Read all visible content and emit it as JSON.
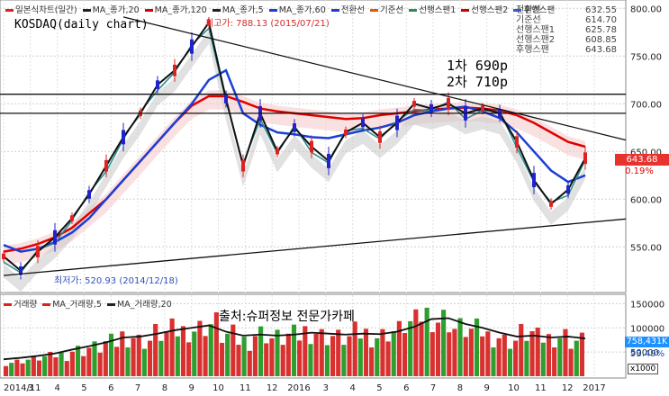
{
  "legend": {
    "items": [
      {
        "label": "일본식차트(일간)",
        "color": "#d22"
      },
      {
        "label": "MA_종가,20",
        "color": "#222"
      },
      {
        "label": "MA_종가,120",
        "color": "#e00000"
      },
      {
        "label": "MA_종가,5",
        "color": "#222"
      },
      {
        "label": "MA_종가,60",
        "color": "#1b3fd6"
      },
      {
        "label": "전환선",
        "color": "#1b3fd6"
      },
      {
        "label": "기준선",
        "color": "#e05a00"
      },
      {
        "label": "선행스팬1",
        "color": "#2e8b57"
      },
      {
        "label": "선행스팬2",
        "color": "#cc0000"
      },
      {
        "label": "후행스팬",
        "color": "#3a5ad0"
      }
    ]
  },
  "info_box": {
    "rows": [
      {
        "label": "전환선",
        "value": "632.55"
      },
      {
        "label": "기준선",
        "value": "614.70"
      },
      {
        "label": "선행스팬1",
        "value": "625.78"
      },
      {
        "label": "선행스팬2",
        "value": "608.85"
      },
      {
        "label": "후행스팬",
        "value": "643.68"
      }
    ]
  },
  "title": "KOSDAQ(daily chart)",
  "annotations": {
    "line1": "1차 690p",
    "line2": "2차 710p",
    "high": "최고가: 788.13 (2015/07/21)",
    "low": "최저가: 520.93 (2014/12/18)",
    "source": "출처:슈퍼정보 전문가카페"
  },
  "price_tag": "643.68",
  "pct_tag": "0.19%",
  "volume": {
    "legend": [
      {
        "label": "거래량",
        "color": "#d22"
      },
      {
        "label": "MA_거래량,5",
        "color": "#d22"
      },
      {
        "label": "MA_거래량,20",
        "color": "#222"
      }
    ],
    "tag": "758,431K",
    "pct": "93.49%",
    "unit": "x1000"
  },
  "chart_data": [
    {
      "type": "line",
      "name": "price",
      "x_labels": [
        "2014/11",
        "3",
        "4",
        "5",
        "6",
        "7",
        "8",
        "9",
        "10",
        "11",
        "12",
        "2016",
        "3",
        "4",
        "5",
        "6",
        "7",
        "8",
        "9",
        "10",
        "11",
        "12",
        "2017"
      ],
      "ylim": [
        505,
        805
      ],
      "y_ticks": [
        550,
        600,
        650,
        700,
        750,
        800
      ],
      "close": [
        540,
        525,
        545,
        560,
        580,
        605,
        635,
        665,
        690,
        720,
        735,
        760,
        785,
        705,
        635,
        690,
        650,
        675,
        655,
        640,
        670,
        680,
        665,
        680,
        700,
        695,
        700,
        690,
        695,
        690,
        660,
        620,
        595,
        610,
        643
      ],
      "ma60": [
        552,
        545,
        548,
        555,
        565,
        580,
        600,
        620,
        640,
        660,
        680,
        700,
        725,
        735,
        690,
        678,
        670,
        668,
        665,
        664,
        668,
        672,
        675,
        680,
        688,
        692,
        695,
        697,
        692,
        685,
        670,
        650,
        630,
        618,
        625
      ],
      "ma120": [
        545,
        548,
        553,
        560,
        570,
        585,
        600,
        620,
        640,
        660,
        680,
        698,
        708,
        708,
        702,
        695,
        692,
        690,
        688,
        686,
        684,
        685,
        688,
        690,
        692,
        694,
        695,
        696,
        695,
        693,
        688,
        680,
        670,
        660,
        655
      ],
      "hlines": [
        710,
        690
      ],
      "trend_upper": {
        "from": [
          7,
          791
        ],
        "to": [
          35,
          668
        ]
      },
      "trend_lower": {
        "from": [
          0,
          520
        ],
        "to": [
          35,
          577
        ]
      }
    },
    {
      "type": "bar",
      "name": "volume",
      "ylim": [
        0,
        160000
      ],
      "y_ticks": [
        50000,
        100000,
        150000
      ],
      "values": [
        30,
        35,
        40,
        45,
        55,
        60,
        70,
        85,
        75,
        90,
        95,
        100,
        110,
        85,
        75,
        90,
        80,
        85,
        95,
        85,
        80,
        90,
        85,
        95,
        110,
        130,
        120,
        100,
        95,
        85,
        75,
        90,
        80,
        85,
        75
      ],
      "ma20": [
        35,
        38,
        42,
        47,
        55,
        62,
        70,
        80,
        82,
        88,
        95,
        100,
        105,
        92,
        84,
        86,
        84,
        86,
        90,
        88,
        86,
        88,
        87,
        92,
        102,
        118,
        120,
        108,
        100,
        90,
        82,
        84,
        80,
        82,
        78
      ]
    }
  ]
}
